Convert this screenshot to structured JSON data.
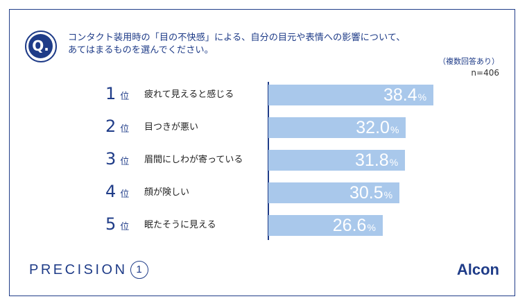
{
  "header": {
    "q_badge": "Q.",
    "question_line1": "コンタクト装用時の「目の不快感」による、自分の目元や表情への影響について、",
    "question_line2": "あてはまるものを選んでください。",
    "note": "（複数回答あり）",
    "sample": "n=406"
  },
  "rank_unit": "位",
  "percent_unit": "%",
  "chart_data": {
    "type": "bar",
    "orientation": "horizontal",
    "title": "",
    "xlabel": "",
    "ylabel": "",
    "xlim": [
      0,
      60
    ],
    "grid": false,
    "categories": [
      "疲れて見えると感じる",
      "目つきが悪い",
      "眉間にしわが寄っている",
      "顔が険しい",
      "眠たそうに見える"
    ],
    "ranks": [
      "1",
      "2",
      "3",
      "4",
      "5"
    ],
    "values": [
      38.4,
      32.0,
      31.8,
      30.5,
      26.6
    ],
    "value_labels": [
      "38.4",
      "32.0",
      "31.8",
      "30.5",
      "26.6"
    ],
    "bar_color": "#a9c8eb"
  },
  "footer": {
    "brand_left_text": "PRECISION",
    "brand_left_mark": "1",
    "brand_right": "Alcon"
  },
  "colors": {
    "accent": "#1f3c88",
    "bar": "#a9c8eb"
  }
}
